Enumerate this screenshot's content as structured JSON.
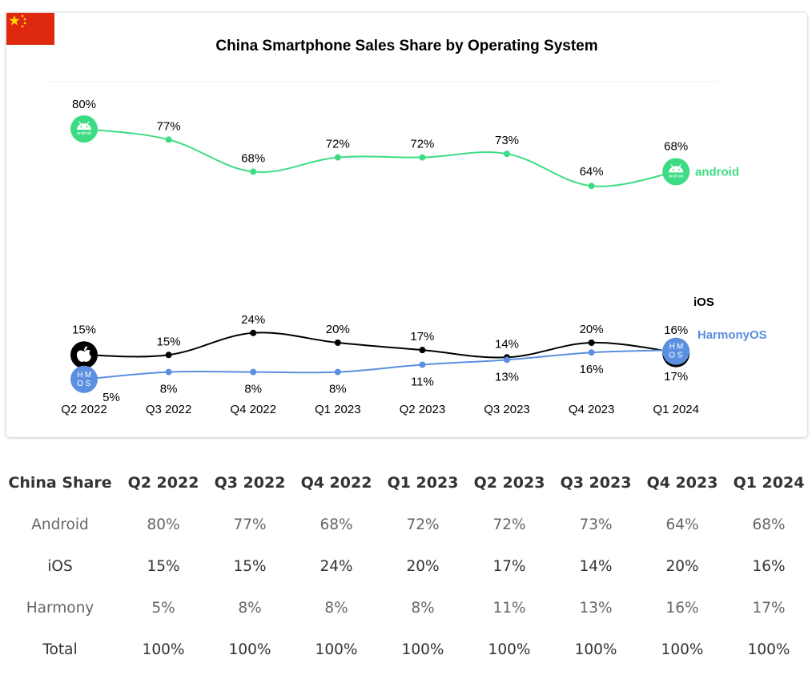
{
  "chart_data": {
    "type": "line",
    "title": "China Smartphone Sales Share by Operating System",
    "categories": [
      "Q2 2022",
      "Q3 2022",
      "Q4 2022",
      "Q1 2023",
      "Q2 2023",
      "Q3 2023",
      "Q4 2023",
      "Q1 2024"
    ],
    "series": [
      {
        "name": "android",
        "values": [
          80,
          77,
          68,
          72,
          72,
          73,
          64,
          68
        ],
        "color": "#3ddc84",
        "icon": "android-icon"
      },
      {
        "name": "iOS",
        "values": [
          15,
          15,
          24,
          20,
          17,
          14,
          20,
          16
        ],
        "color": "#000000",
        "icon": "apple-icon"
      },
      {
        "name": "HarmonyOS",
        "values": [
          5,
          8,
          8,
          8,
          11,
          13,
          16,
          17
        ],
        "color": "#5b8fe0",
        "icon": "harmonyos-icon"
      }
    ],
    "unit_suffix": "%",
    "ylim": [
      0,
      85
    ],
    "grid": false,
    "legend": "right, at end of lines"
  },
  "flag": {
    "icon": "china-flag-icon",
    "color": "#de2910",
    "star_color": "#ffde00"
  },
  "table": {
    "headers": [
      "China Share",
      "Q2 2022",
      "Q3 2022",
      "Q4 2022",
      "Q1 2023",
      "Q2 2023",
      "Q3 2023",
      "Q4 2023",
      "Q1 2024"
    ],
    "rows": [
      [
        "Android",
        "80%",
        "77%",
        "68%",
        "72%",
        "72%",
        "73%",
        "64%",
        "68%"
      ],
      [
        "iOS",
        "15%",
        "15%",
        "24%",
        "20%",
        "17%",
        "14%",
        "20%",
        "16%"
      ],
      [
        "Harmony",
        "5%",
        "8%",
        "8%",
        "8%",
        "11%",
        "13%",
        "16%",
        "17%"
      ],
      [
        "Total",
        "100%",
        "100%",
        "100%",
        "100%",
        "100%",
        "100%",
        "100%",
        "100%"
      ]
    ]
  }
}
